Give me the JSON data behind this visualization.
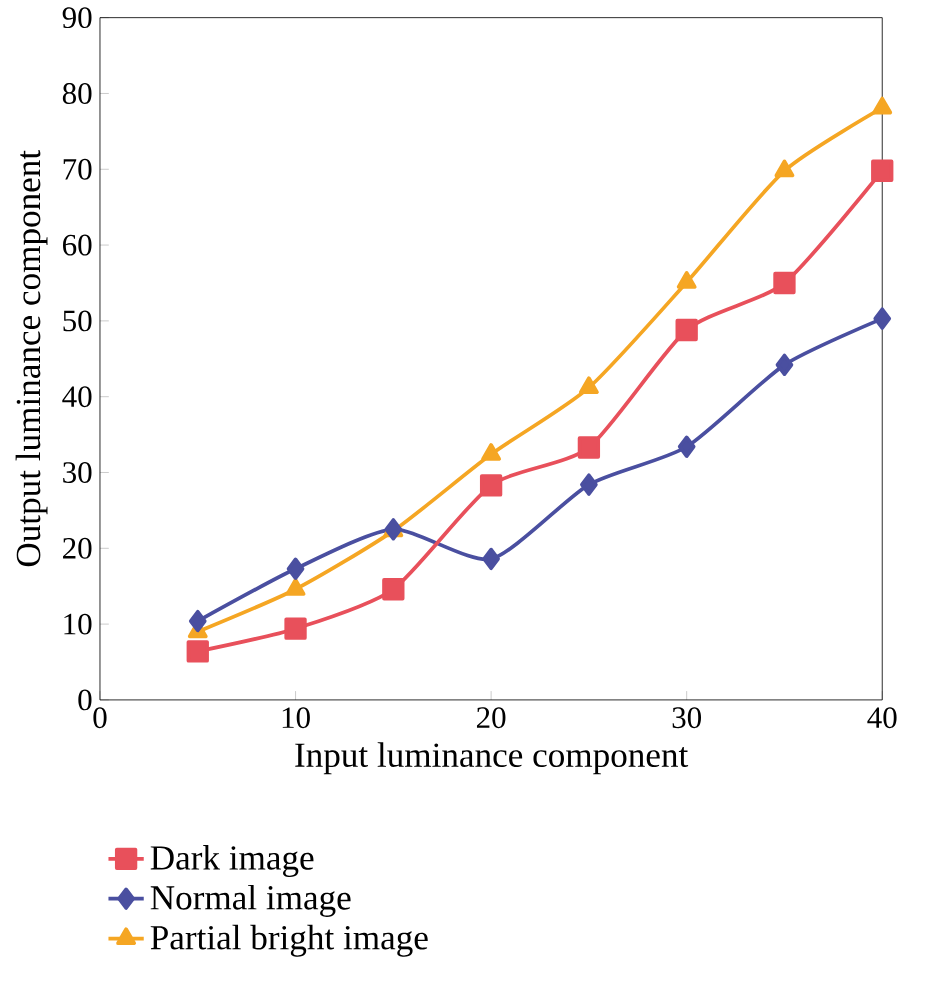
{
  "chart_data": {
    "type": "line",
    "xlabel": "Input luminance component",
    "ylabel": "Output luminance component",
    "x": [
      5,
      10,
      15,
      20,
      25,
      30,
      35,
      40
    ],
    "xlim": [
      0,
      40
    ],
    "xticks": [
      0,
      10,
      20,
      30,
      40
    ],
    "ylim": [
      0,
      90
    ],
    "yticks": [
      0,
      10,
      20,
      30,
      40,
      50,
      60,
      70,
      80,
      90
    ],
    "legend": "bottom",
    "line_style": "solid",
    "series": [
      {
        "name": "Dark image",
        "color": "#e8505b",
        "marker": "square",
        "values": [
          6.4,
          9.4,
          14.6,
          28.3,
          33.3,
          48.8,
          55,
          69.8
        ]
      },
      {
        "name": "Normal image",
        "color": "#4a4fa0",
        "marker": "diamond",
        "values": [
          10.4,
          17.3,
          22.5,
          18.6,
          28.4,
          33.4,
          44.2,
          50.3
        ]
      },
      {
        "name": "Partial bright image",
        "color": "#f5a623",
        "marker": "triangle",
        "values": [
          9,
          14.6,
          22.3,
          32.4,
          41.2,
          55.1,
          69.8,
          78.1
        ]
      }
    ]
  }
}
